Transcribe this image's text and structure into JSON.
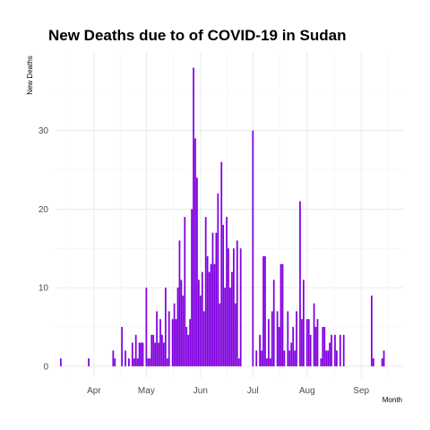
{
  "chart_data": {
    "type": "bar",
    "title": "New Deaths due to of COVID-19 in Sudan",
    "xlabel": "Month",
    "ylabel": "New Deaths",
    "x_tick_labels": [
      "Apr",
      "May",
      "Jun",
      "Jul",
      "Aug",
      "Sep"
    ],
    "x_tick_dates": [
      "2020-04-01",
      "2020-05-01",
      "2020-06-01",
      "2020-07-01",
      "2020-08-01",
      "2020-09-01"
    ],
    "x_range": [
      "2020-03-10",
      "2020-09-25"
    ],
    "y_ticks": [
      0,
      10,
      20,
      30
    ],
    "ylim": [
      -1.5,
      40
    ],
    "grid": true,
    "bar_color": "#8000E0",
    "series": [
      {
        "values": [
          [
            "2020-03-13",
            1
          ],
          [
            "2020-03-29",
            1
          ],
          [
            "2020-04-12",
            2
          ],
          [
            "2020-04-13",
            1
          ],
          [
            "2020-04-17",
            5
          ],
          [
            "2020-04-19",
            2
          ],
          [
            "2020-04-21",
            1
          ],
          [
            "2020-04-23",
            3
          ],
          [
            "2020-04-24",
            1
          ],
          [
            "2020-04-25",
            4
          ],
          [
            "2020-04-26",
            1
          ],
          [
            "2020-04-27",
            3
          ],
          [
            "2020-04-28",
            3
          ],
          [
            "2020-04-29",
            3
          ],
          [
            "2020-05-01",
            10
          ],
          [
            "2020-05-02",
            1
          ],
          [
            "2020-05-03",
            1
          ],
          [
            "2020-05-04",
            4
          ],
          [
            "2020-05-05",
            4
          ],
          [
            "2020-05-06",
            3
          ],
          [
            "2020-05-07",
            7
          ],
          [
            "2020-05-08",
            3
          ],
          [
            "2020-05-09",
            6
          ],
          [
            "2020-05-10",
            4
          ],
          [
            "2020-05-11",
            3
          ],
          [
            "2020-05-12",
            10
          ],
          [
            "2020-05-13",
            1
          ],
          [
            "2020-05-14",
            7
          ],
          [
            "2020-05-16",
            6
          ],
          [
            "2020-05-17",
            8
          ],
          [
            "2020-05-18",
            6
          ],
          [
            "2020-05-19",
            10
          ],
          [
            "2020-05-20",
            16
          ],
          [
            "2020-05-21",
            11
          ],
          [
            "2020-05-22",
            9
          ],
          [
            "2020-05-23",
            19
          ],
          [
            "2020-05-24",
            5
          ],
          [
            "2020-05-25",
            4
          ],
          [
            "2020-05-26",
            6
          ],
          [
            "2020-05-27",
            20
          ],
          [
            "2020-05-28",
            38
          ],
          [
            "2020-05-29",
            29
          ],
          [
            "2020-05-30",
            24
          ],
          [
            "2020-05-31",
            11
          ],
          [
            "2020-06-01",
            9
          ],
          [
            "2020-06-02",
            12
          ],
          [
            "2020-06-03",
            7
          ],
          [
            "2020-06-04",
            19
          ],
          [
            "2020-06-05",
            14
          ],
          [
            "2020-06-06",
            12
          ],
          [
            "2020-06-07",
            13
          ],
          [
            "2020-06-08",
            17
          ],
          [
            "2020-06-09",
            13
          ],
          [
            "2020-06-10",
            17
          ],
          [
            "2020-06-11",
            22
          ],
          [
            "2020-06-12",
            8
          ],
          [
            "2020-06-13",
            26
          ],
          [
            "2020-06-14",
            18
          ],
          [
            "2020-06-15",
            10
          ],
          [
            "2020-06-16",
            19
          ],
          [
            "2020-06-17",
            15
          ],
          [
            "2020-06-18",
            10
          ],
          [
            "2020-06-19",
            12
          ],
          [
            "2020-06-20",
            15
          ],
          [
            "2020-06-21",
            8
          ],
          [
            "2020-06-22",
            16
          ],
          [
            "2020-06-23",
            1
          ],
          [
            "2020-06-24",
            15
          ],
          [
            "2020-07-01",
            30
          ],
          [
            "2020-07-03",
            2
          ],
          [
            "2020-07-05",
            4
          ],
          [
            "2020-07-06",
            2
          ],
          [
            "2020-07-07",
            14
          ],
          [
            "2020-07-08",
            14
          ],
          [
            "2020-07-09",
            1
          ],
          [
            "2020-07-10",
            6
          ],
          [
            "2020-07-11",
            1
          ],
          [
            "2020-07-12",
            7
          ],
          [
            "2020-07-13",
            11
          ],
          [
            "2020-07-15",
            7
          ],
          [
            "2020-07-16",
            5
          ],
          [
            "2020-07-17",
            13
          ],
          [
            "2020-07-18",
            13
          ],
          [
            "2020-07-19",
            2
          ],
          [
            "2020-07-21",
            7
          ],
          [
            "2020-07-22",
            2
          ],
          [
            "2020-07-23",
            3
          ],
          [
            "2020-07-24",
            5
          ],
          [
            "2020-07-25",
            2
          ],
          [
            "2020-07-26",
            7
          ],
          [
            "2020-07-28",
            21
          ],
          [
            "2020-07-29",
            6
          ],
          [
            "2020-07-30",
            11
          ],
          [
            "2020-08-01",
            6
          ],
          [
            "2020-08-02",
            6
          ],
          [
            "2020-08-03",
            4
          ],
          [
            "2020-08-05",
            8
          ],
          [
            "2020-08-06",
            5
          ],
          [
            "2020-08-07",
            6
          ],
          [
            "2020-08-09",
            1
          ],
          [
            "2020-08-10",
            5
          ],
          [
            "2020-08-11",
            5
          ],
          [
            "2020-08-12",
            2
          ],
          [
            "2020-08-13",
            2
          ],
          [
            "2020-08-14",
            3
          ],
          [
            "2020-08-15",
            4
          ],
          [
            "2020-08-17",
            4
          ],
          [
            "2020-08-18",
            2
          ],
          [
            "2020-08-20",
            4
          ],
          [
            "2020-08-22",
            4
          ],
          [
            "2020-09-07",
            9
          ],
          [
            "2020-09-08",
            1
          ],
          [
            "2020-09-13",
            1
          ],
          [
            "2020-09-14",
            2
          ]
        ]
      }
    ]
  }
}
